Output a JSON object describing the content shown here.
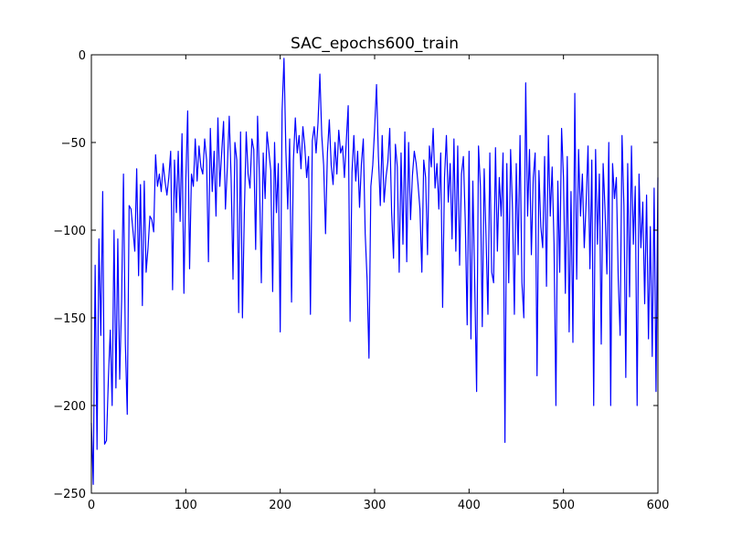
{
  "chart_data": {
    "type": "line",
    "title": "SAC_epochs600_train",
    "xlabel": "",
    "ylabel": "",
    "xlim": [
      0,
      600
    ],
    "ylim": [
      -250,
      0
    ],
    "xticks": [
      0,
      100,
      200,
      300,
      400,
      500,
      600
    ],
    "yticks": [
      -250,
      -200,
      -150,
      -100,
      -50,
      0
    ],
    "grid": false,
    "legend": "none",
    "series": [
      {
        "color": "#0000ff",
        "x": [
          0,
          2,
          4,
          6,
          8,
          10,
          12,
          14,
          16,
          18,
          20,
          22,
          24,
          26,
          28,
          30,
          32,
          34,
          36,
          38,
          40,
          42,
          44,
          46,
          48,
          50,
          52,
          54,
          56,
          58,
          60,
          62,
          64,
          66,
          68,
          70,
          72,
          74,
          76,
          78,
          80,
          82,
          84,
          86,
          88,
          90,
          92,
          94,
          96,
          98,
          100,
          102,
          104,
          106,
          108,
          110,
          112,
          114,
          116,
          118,
          120,
          122,
          124,
          126,
          128,
          130,
          132,
          134,
          136,
          138,
          140,
          142,
          144,
          146,
          148,
          150,
          152,
          154,
          156,
          158,
          160,
          162,
          164,
          166,
          168,
          170,
          172,
          174,
          176,
          178,
          180,
          182,
          184,
          186,
          188,
          190,
          192,
          194,
          196,
          198,
          200,
          202,
          204,
          206,
          208,
          210,
          212,
          214,
          216,
          218,
          220,
          222,
          224,
          226,
          228,
          230,
          232,
          234,
          236,
          238,
          240,
          242,
          244,
          246,
          248,
          250,
          252,
          254,
          256,
          258,
          260,
          262,
          264,
          266,
          268,
          270,
          272,
          274,
          276,
          278,
          280,
          282,
          284,
          286,
          288,
          290,
          292,
          294,
          296,
          298,
          300,
          302,
          304,
          306,
          308,
          310,
          312,
          314,
          316,
          318,
          320,
          322,
          324,
          326,
          328,
          330,
          332,
          334,
          336,
          338,
          340,
          342,
          344,
          346,
          348,
          350,
          352,
          354,
          356,
          358,
          360,
          362,
          364,
          366,
          368,
          370,
          372,
          374,
          376,
          378,
          380,
          382,
          384,
          386,
          388,
          390,
          392,
          394,
          396,
          398,
          400,
          402,
          404,
          406,
          408,
          410,
          412,
          414,
          416,
          418,
          420,
          422,
          424,
          426,
          428,
          430,
          432,
          434,
          436,
          438,
          440,
          442,
          444,
          446,
          448,
          450,
          452,
          454,
          456,
          458,
          460,
          462,
          464,
          466,
          468,
          470,
          472,
          474,
          476,
          478,
          480,
          482,
          484,
          486,
          488,
          490,
          492,
          494,
          496,
          498,
          500,
          502,
          504,
          506,
          508,
          510,
          512,
          514,
          516,
          518,
          520,
          522,
          524,
          526,
          528,
          530,
          532,
          534,
          536,
          538,
          540,
          542,
          544,
          546,
          548,
          550,
          552,
          554,
          556,
          558,
          560,
          562,
          564,
          566,
          568,
          570,
          572,
          574,
          576,
          578,
          580,
          582,
          584,
          586,
          588,
          590,
          592,
          594,
          596,
          598,
          600
        ],
        "y": [
          -210,
          -245,
          -120,
          -225,
          -105,
          -160,
          -78,
          -222,
          -220,
          -185,
          -157,
          -200,
          -100,
          -190,
          -105,
          -185,
          -140,
          -68,
          -165,
          -205,
          -86,
          -88,
          -100,
          -112,
          -65,
          -126,
          -74,
          -143,
          -72,
          -124,
          -110,
          -92,
          -94,
          -101,
          -57,
          -75,
          -68,
          -78,
          -62,
          -72,
          -80,
          -70,
          -55,
          -134,
          -60,
          -90,
          -55,
          -95,
          -45,
          -136,
          -72,
          -32,
          -122,
          -68,
          -75,
          -48,
          -72,
          -52,
          -64,
          -68,
          -48,
          -60,
          -118,
          -42,
          -78,
          -55,
          -92,
          -36,
          -75,
          -56,
          -38,
          -88,
          -64,
          -35,
          -70,
          -128,
          -50,
          -60,
          -147,
          -44,
          -150,
          -90,
          -44,
          -68,
          -76,
          -48,
          -54,
          -111,
          -35,
          -70,
          -130,
          -56,
          -82,
          -44,
          -55,
          -66,
          -135,
          -50,
          -90,
          -62,
          -158,
          -32,
          -2,
          -55,
          -88,
          -48,
          -141,
          -60,
          -36,
          -56,
          -46,
          -65,
          -41,
          -52,
          -70,
          -58,
          -148,
          -49,
          -41,
          -56,
          -39,
          -11,
          -46,
          -63,
          -102,
          -56,
          -37,
          -63,
          -74,
          -50,
          -68,
          -43,
          -56,
          -52,
          -70,
          -49,
          -29,
          -152,
          -67,
          -46,
          -72,
          -55,
          -87,
          -62,
          -48,
          -102,
          -128,
          -173,
          -75,
          -63,
          -42,
          -17,
          -58,
          -86,
          -46,
          -84,
          -70,
          -61,
          -42,
          -90,
          -116,
          -51,
          -64,
          -124,
          -56,
          -108,
          -44,
          -118,
          -50,
          -94,
          -69,
          -55,
          -62,
          -74,
          -88,
          -124,
          -60,
          -70,
          -114,
          -52,
          -64,
          -42,
          -76,
          -62,
          -88,
          -56,
          -144,
          -70,
          -46,
          -84,
          -62,
          -105,
          -48,
          -112,
          -52,
          -120,
          -68,
          -58,
          -95,
          -154,
          -55,
          -162,
          -72,
          -130,
          -192,
          -52,
          -75,
          -155,
          -65,
          -104,
          -148,
          -56,
          -124,
          -130,
          -53,
          -112,
          -70,
          -92,
          -56,
          -221,
          -62,
          -130,
          -54,
          -88,
          -148,
          -62,
          -114,
          -46,
          -130,
          -150,
          -16,
          -92,
          -54,
          -114,
          -70,
          -56,
          -183,
          -66,
          -98,
          -110,
          -58,
          -132,
          -46,
          -92,
          -64,
          -108,
          -200,
          -72,
          -124,
          -42,
          -70,
          -136,
          -58,
          -158,
          -78,
          -164,
          -22,
          -128,
          -54,
          -92,
          -68,
          -110,
          -84,
          -52,
          -122,
          -60,
          -200,
          -54,
          -108,
          -68,
          -165,
          -62,
          -88,
          -125,
          -50,
          -200,
          -62,
          -82,
          -70,
          -128,
          -160,
          -46,
          -86,
          -184,
          -62,
          -138,
          -52,
          -108,
          -75,
          -200,
          -68,
          -110,
          -84,
          -142,
          -80,
          -162,
          -98,
          -172,
          -76,
          -192,
          -70
        ]
      }
    ]
  }
}
